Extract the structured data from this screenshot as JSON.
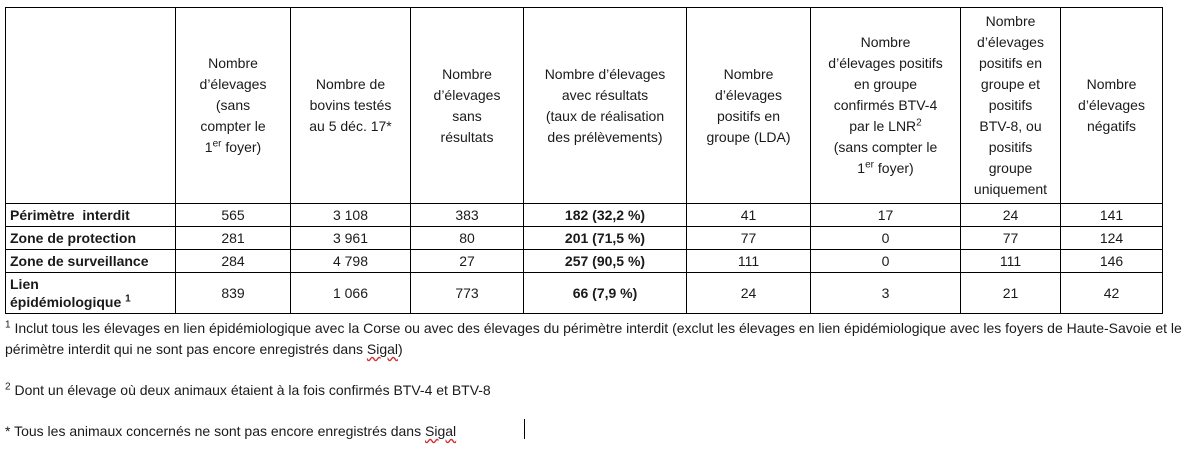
{
  "table": {
    "headers": [
      {
        "lines": [
          "Nombre",
          "d’élevages",
          "(sans",
          "compter le"
        ],
        "tail_pre": "1",
        "tail_sup": "er",
        "tail_post": " foyer)"
      },
      {
        "lines": [
          "Nombre de",
          "bovins testés",
          "au 5 déc. 17*"
        ]
      },
      {
        "lines": [
          "Nombre",
          "d’élevages",
          "sans",
          "résultats"
        ]
      },
      {
        "lines": [
          "Nombre d’élevages",
          "avec résultats",
          "(taux de réalisation",
          "des prélèvements)"
        ]
      },
      {
        "lines": [
          "Nombre",
          "d’élevages",
          "positifs en",
          "groupe (LDA)"
        ]
      },
      {
        "lines": [
          "Nombre",
          "d’élevages positifs",
          "en groupe",
          "confirmés BTV-4"
        ],
        "mid_pre": "par le LNR",
        "mid_sup": "2",
        "after_lines": [
          "(sans compter le"
        ],
        "tail_pre": "1",
        "tail_sup": "er",
        "tail_post": " foyer)"
      },
      {
        "lines": [
          "Nombre",
          "d’élevages",
          "positifs en",
          "groupe et",
          "positifs",
          "BTV-8, ou",
          "positifs",
          "groupe",
          "uniquement"
        ]
      },
      {
        "lines": [
          "Nombre",
          "d’élevages",
          "négatifs"
        ]
      }
    ],
    "rows": [
      {
        "label": "Périmètre  interdit",
        "label_sup": "",
        "cells": [
          "565",
          "3 108",
          "383",
          "182 (32,2 %)",
          "41",
          "17",
          "24",
          "141"
        ]
      },
      {
        "label": "Zone de protection",
        "label_sup": "",
        "cells": [
          "281",
          "3 961",
          "80",
          "201 (71,5 %)",
          "77",
          "0",
          "77",
          "124"
        ]
      },
      {
        "label": "Zone de surveillance",
        "label_sup": "",
        "cells": [
          "284",
          "4 798",
          "27",
          "257 (90,5 %)",
          "111",
          "0",
          "111",
          "146"
        ]
      },
      {
        "label": "Lien épidémiologique",
        "label_line1": "Lien",
        "label_line2": "épidémiologique",
        "label_sup": "1",
        "cells": [
          "839",
          "1 066",
          "773",
          "66 (7,9 %)",
          "24",
          "3",
          "21",
          "42"
        ]
      }
    ]
  },
  "notes": {
    "note1": {
      "sup": "1",
      "text": " Inclut tous les élevages en lien épidémiologique avec la Corse ou avec des élevages du périmètre interdit (exclut les élevages en lien épidémiologique avec les foyers de Haute-Savoie et le périmètre interdit qui ne sont pas encore enregistrés dans ",
      "squig": "Sigal",
      "end": ")"
    },
    "note2": {
      "sup": "2",
      "text": " Dont un élevage où deux animaux étaient à la fois confirmés BTV-4 et BTV-8"
    },
    "note3": {
      "text": "* Tous les animaux concernés ne sont pas encore enregistrés dans ",
      "squig": "Sigal"
    }
  }
}
